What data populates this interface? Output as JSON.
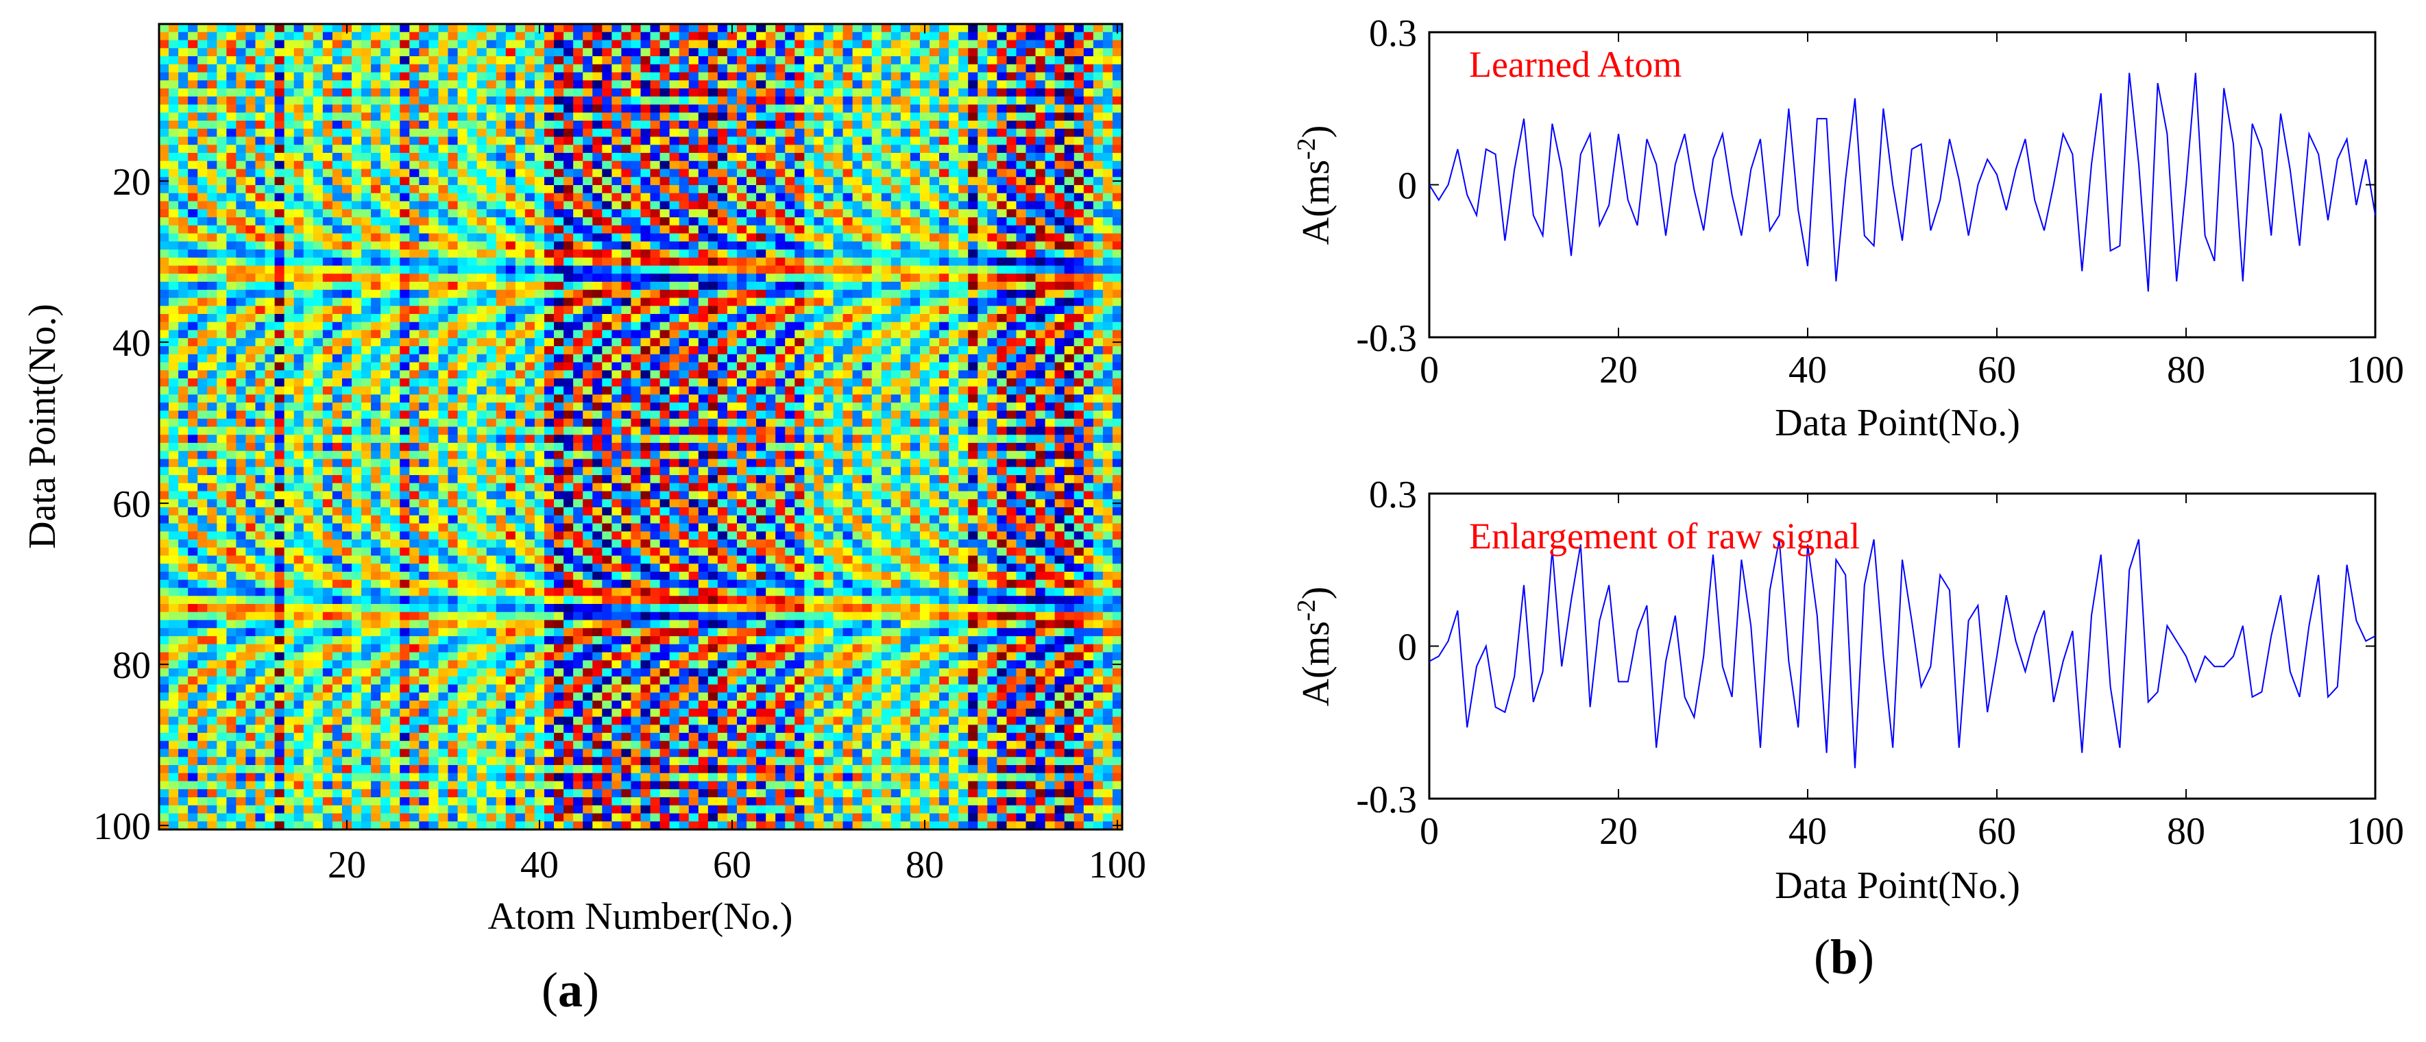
{
  "chart_data": [
    {
      "id": "a",
      "type": "heatmap",
      "panel_label": "a",
      "xlabel": "Atom Number(No.)",
      "ylabel": "Data Point(No.)",
      "xlim": [
        1,
        100
      ],
      "ylim": [
        1,
        100
      ],
      "xticks": [
        20,
        40,
        60,
        80,
        100
      ],
      "yticks": [
        20,
        40,
        60,
        80,
        100
      ],
      "rows": 100,
      "cols": 100,
      "colormap": "jet",
      "note": "Cell values are approximated (learned dictionary atoms, roughly in [-0.3, 0.3])."
    },
    {
      "id": "b1",
      "type": "line",
      "annotation": "Learned Atom",
      "xlabel": "Data Point(No.)",
      "ylabel": "A(ms",
      "ylabel_sup": "-2",
      "ylabel_end": ")",
      "xlim": [
        0,
        100
      ],
      "ylim": [
        -0.3,
        0.3
      ],
      "xticks": [
        0,
        20,
        40,
        60,
        80,
        100
      ],
      "yticks": [
        -0.3,
        0,
        0.3
      ],
      "ytick_labels": [
        "-0.3",
        "0",
        "0.3"
      ],
      "color": "#0000ff",
      "x": [
        0,
        1,
        2,
        3,
        4,
        5,
        6,
        7,
        8,
        9,
        10,
        11,
        12,
        13,
        14,
        15,
        16,
        17,
        18,
        19,
        20,
        21,
        22,
        23,
        24,
        25,
        26,
        27,
        28,
        29,
        30,
        31,
        32,
        33,
        34,
        35,
        36,
        37,
        38,
        39,
        40,
        41,
        42,
        43,
        44,
        45,
        46,
        47,
        48,
        49,
        50,
        51,
        52,
        53,
        54,
        55,
        56,
        57,
        58,
        59,
        60,
        61,
        62,
        63,
        64,
        65,
        66,
        67,
        68,
        69,
        70,
        71,
        72,
        73,
        74,
        75,
        76,
        77,
        78,
        79,
        80,
        81,
        82,
        83,
        84,
        85,
        86,
        87,
        88,
        89,
        90,
        91,
        92,
        93,
        94,
        95,
        96,
        97,
        98,
        99,
        100
      ],
      "y": [
        0,
        -0.03,
        0,
        0.07,
        -0.02,
        -0.06,
        0.07,
        0.06,
        -0.11,
        0.03,
        0.13,
        -0.06,
        -0.1,
        0.12,
        0.03,
        -0.14,
        0.06,
        0.1,
        -0.08,
        -0.04,
        0.1,
        -0.03,
        -0.08,
        0.09,
        0.04,
        -0.1,
        0.04,
        0.1,
        -0.01,
        -0.09,
        0.05,
        0.1,
        -0.02,
        -0.1,
        0.03,
        0.09,
        -0.09,
        -0.06,
        0.15,
        -0.05,
        -0.16,
        0.13,
        0.13,
        -0.19,
        0.01,
        0.17,
        -0.1,
        -0.12,
        0.15,
        0,
        -0.11,
        0.07,
        0.08,
        -0.09,
        -0.03,
        0.09,
        0.01,
        -0.1,
        0,
        0.05,
        0.02,
        -0.05,
        0.03,
        0.09,
        -0.03,
        -0.09,
        0,
        0.1,
        0.06,
        -0.17,
        0.04,
        0.18,
        -0.13,
        -0.12,
        0.22,
        0.04,
        -0.21,
        0.2,
        0.1,
        -0.19,
        0,
        0.22,
        -0.1,
        -0.15,
        0.19,
        0.08,
        -0.19,
        0.12,
        0.07,
        -0.1,
        0.14,
        0.03,
        -0.12,
        0.1,
        0.06,
        -0.07,
        0.05,
        0.09,
        -0.04,
        0.05,
        -0.06
      ]
    },
    {
      "id": "b2",
      "type": "line",
      "annotation": "Enlargement of raw signal",
      "panel_label": "b",
      "xlabel": "Data Point(No.)",
      "ylabel": "A(ms",
      "ylabel_sup": "-2",
      "ylabel_end": ")",
      "xlim": [
        0,
        100
      ],
      "ylim": [
        -0.3,
        0.3
      ],
      "xticks": [
        0,
        20,
        40,
        60,
        80,
        100
      ],
      "yticks": [
        -0.3,
        0,
        0.3
      ],
      "ytick_labels": [
        "-0.3",
        "0",
        "0.3"
      ],
      "color": "#0000ff",
      "x": [
        0,
        1,
        2,
        3,
        4,
        5,
        6,
        7,
        8,
        9,
        10,
        11,
        12,
        13,
        14,
        15,
        16,
        17,
        18,
        19,
        20,
        21,
        22,
        23,
        24,
        25,
        26,
        27,
        28,
        29,
        30,
        31,
        32,
        33,
        34,
        35,
        36,
        37,
        38,
        39,
        40,
        41,
        42,
        43,
        44,
        45,
        46,
        47,
        48,
        49,
        50,
        51,
        52,
        53,
        54,
        55,
        56,
        57,
        58,
        59,
        60,
        61,
        62,
        63,
        64,
        65,
        66,
        67,
        68,
        69,
        70,
        71,
        72,
        73,
        74,
        75,
        76,
        77,
        78,
        79,
        80,
        81,
        82,
        83,
        84,
        85,
        86,
        87,
        88,
        89,
        90,
        91,
        92,
        93,
        94,
        95,
        96,
        97,
        98,
        99,
        100
      ],
      "y": [
        -0.03,
        -0.02,
        0.01,
        0.07,
        -0.16,
        -0.04,
        0,
        -0.12,
        -0.13,
        -0.06,
        0.12,
        -0.11,
        -0.05,
        0.19,
        -0.04,
        0.09,
        0.2,
        -0.12,
        0.05,
        0.12,
        -0.07,
        -0.07,
        0.03,
        0.08,
        -0.2,
        -0.03,
        0.06,
        -0.1,
        -0.14,
        -0.02,
        0.18,
        -0.04,
        -0.1,
        0.17,
        0.04,
        -0.2,
        0.11,
        0.21,
        -0.03,
        -0.16,
        0.2,
        0.06,
        -0.21,
        0.17,
        0.14,
        -0.24,
        0.12,
        0.21,
        -0.02,
        -0.2,
        0.17,
        0.05,
        -0.08,
        -0.04,
        0.14,
        0.11,
        -0.2,
        0.05,
        0.08,
        -0.13,
        -0.02,
        0.1,
        0.01,
        -0.05,
        0.02,
        0.07,
        -0.11,
        -0.03,
        0.03,
        -0.21,
        0.06,
        0.18,
        -0.08,
        -0.2,
        0.15,
        0.21,
        -0.11,
        -0.09,
        0.04,
        0.01,
        -0.02,
        -0.07,
        -0.02,
        -0.04,
        -0.04,
        -0.02,
        0.04,
        -0.1,
        -0.09,
        0.02,
        0.1,
        -0.05,
        -0.1,
        0.04,
        0.14,
        -0.1,
        -0.08,
        0.16,
        0.05,
        0.01,
        0.02
      ]
    }
  ]
}
